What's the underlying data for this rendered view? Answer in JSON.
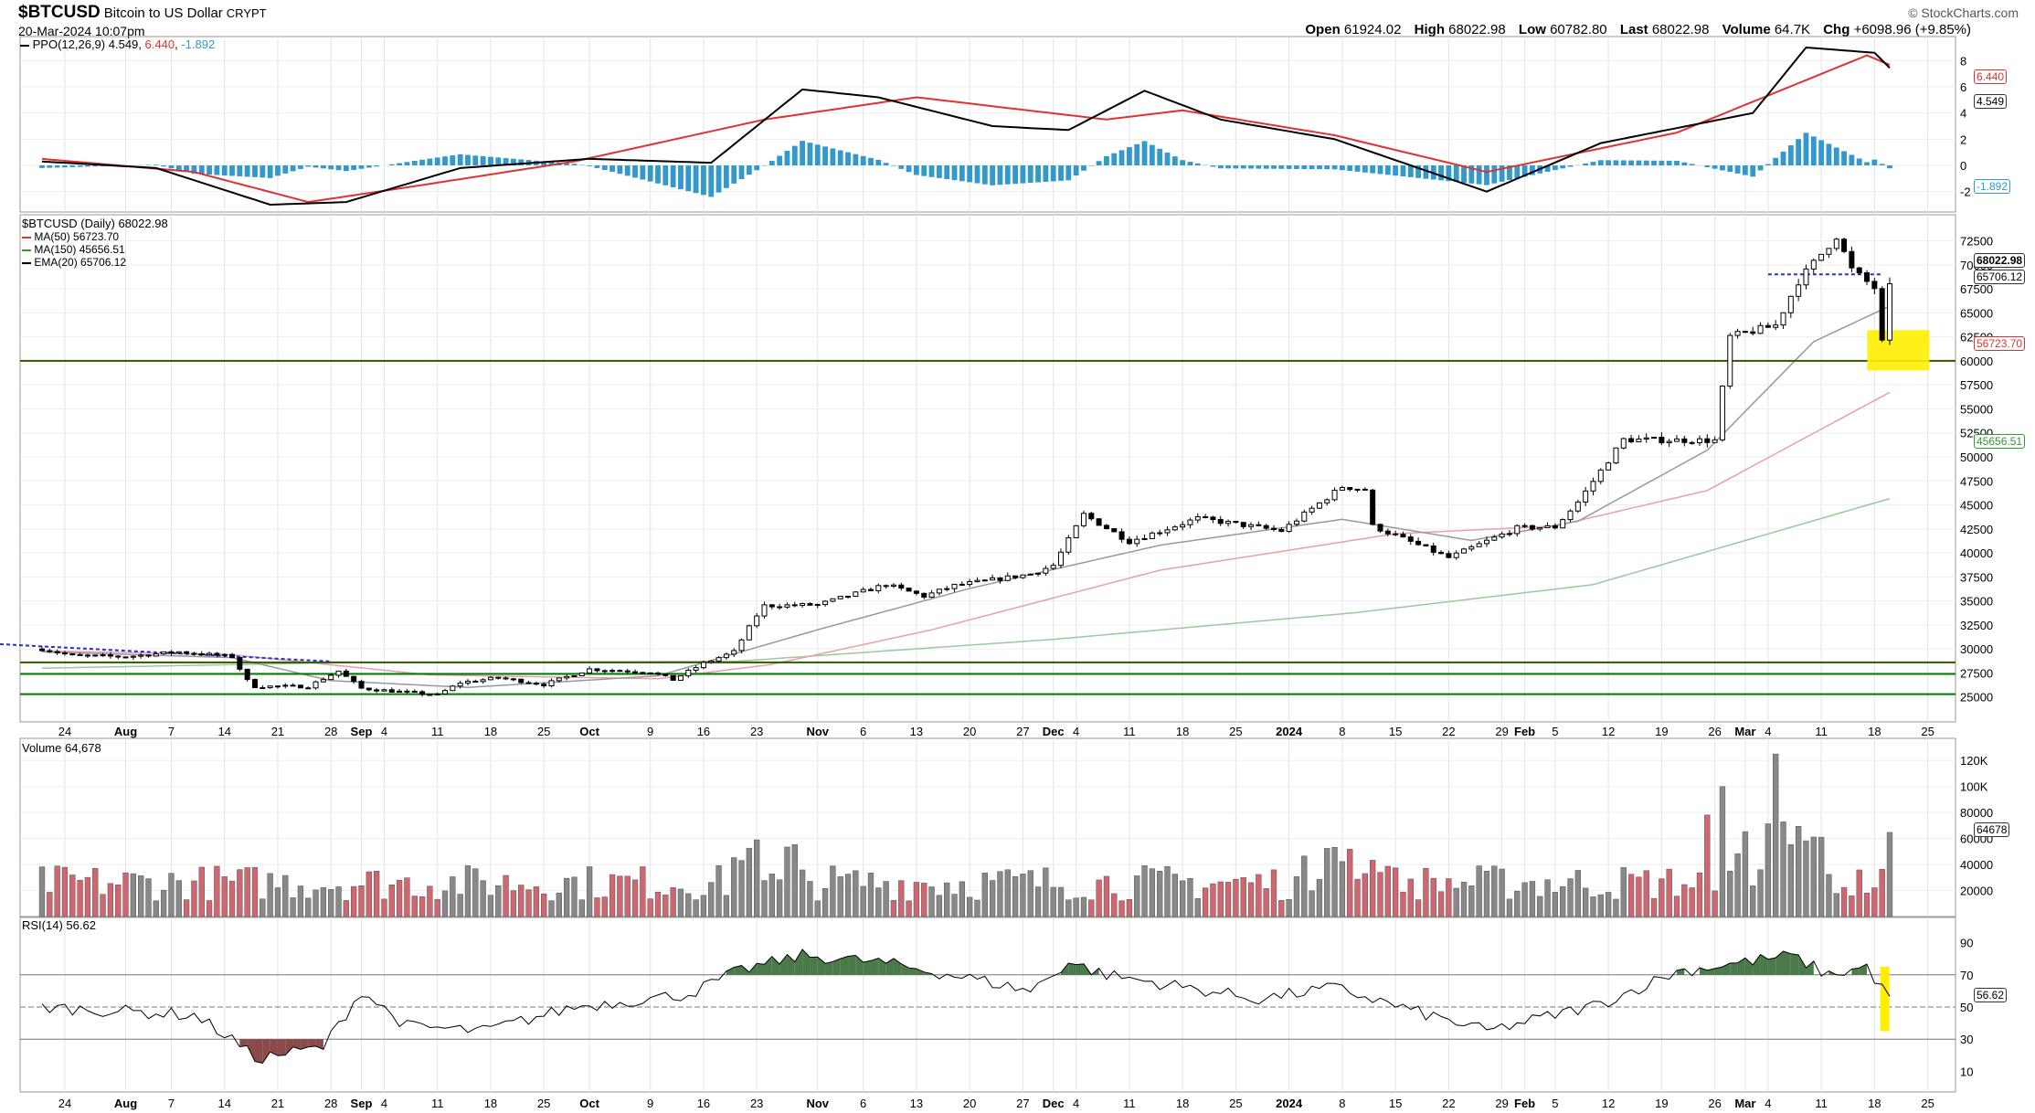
{
  "header": {
    "symbol": "$BTCUSD",
    "description": "Bitcoin to US Dollar",
    "exchange": "CRYPT",
    "datetime": "20-Mar-2024 10:07pm",
    "brand": "© StockCharts.com",
    "open_label": "Open",
    "open": "61924.02",
    "high_label": "High",
    "high": "68022.98",
    "low_label": "Low",
    "low": "60782.80",
    "last_label": "Last",
    "last": "68022.98",
    "volume_label": "Volume",
    "volume": "64.7K",
    "chg_label": "Chg",
    "chg": "+6098.96 (+9.85%)"
  },
  "ppo_panel": {
    "label": "PPO(12,26,9)",
    "v1": "4.549",
    "v2": "6.440",
    "v3": "-1.892",
    "tag_signal": "6.440",
    "tag_ppo": "4.549",
    "tag_hist": "-1.892",
    "ticks": [
      "8",
      "6",
      "4",
      "2",
      "0",
      "-2"
    ]
  },
  "price_panel": {
    "legend_title": "$BTCUSD (Daily) 68022.98",
    "ma50": "MA(50) 56723.70",
    "ma150": "MA(150) 45656.51",
    "ema20": "EMA(20) 65706.12",
    "tag_last": "68022.98",
    "tag_ema20": "65706.12",
    "tag_ma50": "56723.70",
    "tag_ma150": "45656.51",
    "ticks": [
      "72500",
      "70000",
      "67500",
      "65000",
      "62500",
      "60000",
      "57500",
      "55000",
      "52500",
      "50000",
      "47500",
      "45000",
      "42500",
      "40000",
      "37500",
      "35000",
      "32500",
      "30000",
      "27500",
      "25000"
    ]
  },
  "volume_panel": {
    "label": "Volume 64,678",
    "tag": "64678",
    "ticks": [
      "120K",
      "100K",
      "80000",
      "60000",
      "40000",
      "20000"
    ]
  },
  "rsi_panel": {
    "label": "RSI(14) 56.62",
    "tag": "56.62",
    "ticks": [
      "90",
      "70",
      "50",
      "30",
      "10"
    ]
  },
  "x_axis": {
    "labels": [
      "24",
      "Aug",
      "7",
      "14",
      "21",
      "28",
      "Sep",
      "4",
      "11",
      "18",
      "25",
      "Oct",
      "9",
      "16",
      "23",
      "Nov",
      "6",
      "13",
      "20",
      "27",
      "Dec",
      "4",
      "11",
      "18",
      "25",
      "2024",
      "8",
      "15",
      "22",
      "29",
      "Feb",
      "5",
      "12",
      "19",
      "26",
      "Mar",
      "4",
      "11",
      "18",
      "25"
    ]
  },
  "colors": {
    "up": "#ffffff",
    "down": "#000000",
    "ma50": "#e8a0a8",
    "ma150": "#9cc89c",
    "ema20": "#999999",
    "support_red": "#cc0000",
    "support_green": "#007700",
    "trend_blue": "#2233cc",
    "highlight": "#ffee00",
    "vol_up": "#888888",
    "vol_down": "#d06670",
    "hist": "#3399cc",
    "rsi_fill_hi": "#4a7a4a",
    "rsi_fill_lo": "#8b4a4a"
  },
  "chart_data": {
    "type": "candlestick",
    "title": "$BTCUSD Bitcoin to US Dollar",
    "date_range": [
      "2023-07-21",
      "2024-03-20"
    ],
    "ylim_price": [
      24500,
      73500
    ],
    "price_keypoints": [
      [
        "2023-07-21",
        30000
      ],
      [
        "2023-07-25",
        29300
      ],
      [
        "2023-08-01",
        29200
      ],
      [
        "2023-08-08",
        29700
      ],
      [
        "2023-08-15",
        29200
      ],
      [
        "2023-08-17",
        26700
      ],
      [
        "2023-08-18",
        26100
      ],
      [
        "2023-08-25",
        26100
      ],
      [
        "2023-08-29",
        27700
      ],
      [
        "2023-09-01",
        25900
      ],
      [
        "2023-09-11",
        25200
      ],
      [
        "2023-09-14",
        26500
      ],
      [
        "2023-09-19",
        27000
      ],
      [
        "2023-09-25",
        26300
      ],
      [
        "2023-10-01",
        27900
      ],
      [
        "2023-10-09",
        27600
      ],
      [
        "2023-10-12",
        26800
      ],
      [
        "2023-10-16",
        28500
      ],
      [
        "2023-10-20",
        29700
      ],
      [
        "2023-10-23",
        33500
      ],
      [
        "2023-10-24",
        34500
      ],
      [
        "2023-10-31",
        34600
      ],
      [
        "2023-11-09",
        36700
      ],
      [
        "2023-11-14",
        35500
      ],
      [
        "2023-11-18",
        36600
      ],
      [
        "2023-11-28",
        37800
      ],
      [
        "2023-12-01",
        38700
      ],
      [
        "2023-12-05",
        44000
      ],
      [
        "2023-12-11",
        41200
      ],
      [
        "2023-12-20",
        43600
      ],
      [
        "2023-12-31",
        42300
      ],
      [
        "2024-01-08",
        46900
      ],
      [
        "2024-01-11",
        46600
      ],
      [
        "2024-01-12",
        42800
      ],
      [
        "2024-01-22",
        39500
      ],
      [
        "2024-01-31",
        42600
      ],
      [
        "2024-02-05",
        42700
      ],
      [
        "2024-02-08",
        45300
      ],
      [
        "2024-02-14",
        51800
      ],
      [
        "2024-02-26",
        51700
      ],
      [
        "2024-02-28",
        62500
      ],
      [
        "2024-03-05",
        63700
      ],
      [
        "2024-03-08",
        68300
      ],
      [
        "2024-03-13",
        73000
      ],
      [
        "2024-03-15",
        69500
      ],
      [
        "2024-03-18",
        67600
      ],
      [
        "2024-03-19",
        61900
      ],
      [
        "2024-03-20",
        68022.98
      ]
    ],
    "ma50_keypoints": [
      [
        "2023-07-21",
        29800
      ],
      [
        "2023-08-15",
        29400
      ],
      [
        "2023-09-10",
        27300
      ],
      [
        "2023-10-10",
        26900
      ],
      [
        "2023-10-25",
        28400
      ],
      [
        "2023-11-15",
        32000
      ],
      [
        "2023-12-15",
        38200
      ],
      [
        "2024-01-15",
        42000
      ],
      [
        "2024-02-05",
        42800
      ],
      [
        "2024-02-25",
        46500
      ],
      [
        "2024-03-20",
        56723.7
      ]
    ],
    "ma150_keypoints": [
      [
        "2023-07-21",
        28000
      ],
      [
        "2023-08-31",
        28600
      ],
      [
        "2023-10-20",
        28700
      ],
      [
        "2023-12-01",
        31000
      ],
      [
        "2024-01-10",
        33800
      ],
      [
        "2024-02-10",
        36700
      ],
      [
        "2024-03-20",
        45656.51
      ]
    ],
    "ema20_keypoints": [
      [
        "2023-07-21",
        29700
      ],
      [
        "2023-08-15",
        29100
      ],
      [
        "2023-08-28",
        26700
      ],
      [
        "2023-09-15",
        26000
      ],
      [
        "2023-10-10",
        27200
      ],
      [
        "2023-10-31",
        32000
      ],
      [
        "2023-11-20",
        36300
      ],
      [
        "2023-12-15",
        40800
      ],
      [
        "2024-01-08",
        43500
      ],
      [
        "2024-01-25",
        41300
      ],
      [
        "2024-02-08",
        43300
      ],
      [
        "2024-02-25",
        50700
      ],
      [
        "2024-03-10",
        62000
      ],
      [
        "2024-03-20",
        65706.12
      ]
    ],
    "horizontal_levels": {
      "red": [
        60000,
        28600
      ],
      "green": [
        60000,
        28600,
        27400,
        25300
      ]
    },
    "volume_range": [
      0,
      130000
    ],
    "volume_last": 64678,
    "rsi_last": 56.62,
    "rsi_bands": [
      30,
      50,
      70
    ],
    "ppo_last": 4.549,
    "ppo_signal_last": 6.44,
    "ppo_hist_last": -1.892
  }
}
